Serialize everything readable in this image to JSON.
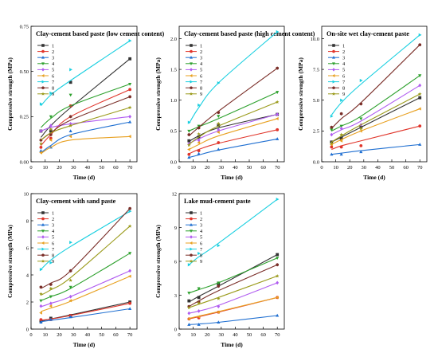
{
  "series_labels": [
    "1",
    "2",
    "3",
    "4",
    "5",
    "6",
    "7",
    "8",
    "9"
  ],
  "series_colors": [
    "#333333",
    "#e0352b",
    "#1f6fd1",
    "#2ca02c",
    "#b05cf0",
    "#e8a020",
    "#19cfe0",
    "#7a2e28",
    "#9a9a1a"
  ],
  "series_markers": [
    "square",
    "circle",
    "triangle-up",
    "triangle-down",
    "diamond",
    "triangle-left",
    "triangle-right",
    "hexagon",
    "star"
  ],
  "chart_data": [
    {
      "type": "scatter",
      "title": "Clay-cement based paste (low cement content)",
      "xlabel": "Time (d)",
      "ylabel": "Compressive strength (MPa)",
      "xlim": [
        0,
        75
      ],
      "ylim": [
        0.0,
        0.75
      ],
      "xticks": [
        0,
        10,
        20,
        30,
        40,
        50,
        60,
        70
      ],
      "yticks": [
        0.0,
        0.25,
        0.5,
        0.75
      ],
      "ytick_labels": [
        "0.00",
        "0.25",
        "0.50",
        "0.75"
      ],
      "x": [
        7,
        14,
        28,
        70
      ],
      "series": [
        {
          "name": "1",
          "values": [
            0.17,
            0.17,
            0.44,
            0.57
          ],
          "fit": [
            0.135,
            0.2,
            0.3,
            0.57
          ]
        },
        {
          "name": "2",
          "values": [
            0.08,
            0.13,
            0.31,
            0.4
          ],
          "fit": [
            0.09,
            0.15,
            0.25,
            0.4
          ]
        },
        {
          "name": "3",
          "values": [
            0.06,
            0.08,
            0.17,
            0.22
          ],
          "fit": [
            0.05,
            0.09,
            0.15,
            0.22
          ]
        },
        {
          "name": "4",
          "values": [
            0.17,
            0.25,
            0.37,
            0.43
          ],
          "fit": [
            0.19,
            0.24,
            0.31,
            0.43
          ]
        },
        {
          "name": "5",
          "values": [
            0.17,
            0.2,
            0.21,
            0.25
          ],
          "fit": [
            0.17,
            0.19,
            0.21,
            0.25
          ]
        },
        {
          "name": "6",
          "values": [
            0.05,
            0.12,
            0.14,
            0.14
          ],
          "fit": [
            0.045,
            0.08,
            0.12,
            0.14
          ]
        },
        {
          "name": "7",
          "values": [
            0.32,
            0.38,
            0.51,
            0.67
          ],
          "fit": [
            0.31,
            0.37,
            0.45,
            0.67
          ]
        },
        {
          "name": "8",
          "values": [
            0.12,
            0.15,
            0.25,
            0.36
          ],
          "fit": [
            0.12,
            0.16,
            0.23,
            0.36
          ]
        },
        {
          "name": "9",
          "values": [
            0.1,
            0.18,
            0.2,
            0.3
          ],
          "fit": [
            0.12,
            0.16,
            0.2,
            0.3
          ]
        }
      ]
    },
    {
      "type": "scatter",
      "title": "Clay-cement based paste (high cement content)",
      "xlabel": "Time (d)",
      "ylabel": "Compressive strength (MPa)",
      "xlim": [
        0,
        75
      ],
      "ylim": [
        0.0,
        2.2
      ],
      "xticks": [
        0,
        10,
        20,
        30,
        40,
        50,
        60,
        70
      ],
      "yticks": [
        0.0,
        0.5,
        1.0,
        1.5,
        2.0
      ],
      "ytick_labels": [
        "0.0",
        "0.5",
        "1.0",
        "1.5",
        "2.0"
      ],
      "x": [
        7,
        14,
        28,
        70
      ],
      "series": [
        {
          "name": "1",
          "values": [
            0.34,
            0.4,
            0.59,
            0.77
          ],
          "fit": [
            0.33,
            0.42,
            0.55,
            0.77
          ]
        },
        {
          "name": "2",
          "values": [
            0.12,
            0.18,
            0.31,
            0.52
          ],
          "fit": [
            0.13,
            0.2,
            0.3,
            0.52
          ]
        },
        {
          "name": "3",
          "values": [
            0.07,
            0.13,
            0.2,
            0.37
          ],
          "fit": [
            0.07,
            0.11,
            0.19,
            0.37
          ]
        },
        {
          "name": "4",
          "values": [
            0.5,
            0.58,
            0.74,
            1.13
          ],
          "fit": [
            0.5,
            0.57,
            0.7,
            1.13
          ]
        },
        {
          "name": "5",
          "values": [
            0.29,
            0.35,
            0.52,
            0.77
          ],
          "fit": [
            0.3,
            0.37,
            0.5,
            0.77
          ]
        },
        {
          "name": "6",
          "values": [
            0.2,
            0.31,
            0.48,
            0.7
          ],
          "fit": [
            0.2,
            0.28,
            0.42,
            0.7
          ]
        },
        {
          "name": "7",
          "values": [
            0.64,
            0.92,
            1.28,
            2.11
          ],
          "fit": [
            0.62,
            0.88,
            1.28,
            2.11
          ]
        },
        {
          "name": "8",
          "values": [
            0.44,
            0.55,
            0.8,
            1.52
          ],
          "fit": [
            0.42,
            0.56,
            0.82,
            1.52
          ]
        },
        {
          "name": "9",
          "values": [
            0.27,
            0.45,
            0.62,
            0.97
          ],
          "fit": [
            0.28,
            0.4,
            0.58,
            0.97
          ]
        }
      ]
    },
    {
      "type": "scatter",
      "title": "On-site wet clay-cement paste",
      "xlabel": "Time (d)",
      "ylabel": "Compressive strength (MPa)",
      "xlim": [
        0,
        75
      ],
      "ylim": [
        0.0,
        11.0
      ],
      "xticks": [
        0,
        10,
        20,
        30,
        40,
        50,
        60,
        70
      ],
      "yticks": [
        0.0,
        2.5,
        5.0,
        7.5,
        10.0
      ],
      "ytick_labels": [
        "0.0",
        "2.5",
        "5.0",
        "7.5",
        "10.0"
      ],
      "x": [
        7,
        14,
        28,
        70
      ],
      "series": [
        {
          "name": "1",
          "values": [
            1.6,
            1.9,
            2.8,
            5.2
          ],
          "fit": [
            1.6,
            2.0,
            2.8,
            5.2
          ]
        },
        {
          "name": "2",
          "values": [
            1.2,
            1.2,
            1.3,
            2.9
          ],
          "fit": [
            1.0,
            1.3,
            1.7,
            2.9
          ]
        },
        {
          "name": "3",
          "values": [
            0.6,
            0.6,
            0.8,
            1.4
          ],
          "fit": [
            0.6,
            0.7,
            0.9,
            1.4
          ]
        },
        {
          "name": "4",
          "values": [
            2.6,
            2.9,
            3.5,
            7.0
          ],
          "fit": [
            2.5,
            2.9,
            3.7,
            7.0
          ]
        },
        {
          "name": "5",
          "values": [
            2.2,
            2.7,
            3.0,
            6.2
          ],
          "fit": [
            2.2,
            2.6,
            3.3,
            6.2
          ]
        },
        {
          "name": "6",
          "values": [
            1.4,
            1.7,
            2.5,
            4.3
          ],
          "fit": [
            1.4,
            1.8,
            2.5,
            4.3
          ]
        },
        {
          "name": "7",
          "values": [
            3.7,
            5.0,
            6.6,
            10.3
          ],
          "fit": [
            3.8,
            4.8,
            6.3,
            10.3
          ]
        },
        {
          "name": "8",
          "values": [
            2.8,
            3.9,
            4.7,
            9.5
          ],
          "fit": [
            2.7,
            3.5,
            4.8,
            9.5
          ]
        },
        {
          "name": "9",
          "values": [
            1.5,
            2.2,
            2.7,
            5.5
          ],
          "fit": [
            1.6,
            2.1,
            3.0,
            5.5
          ]
        }
      ]
    },
    {
      "type": "scatter",
      "title": "Clay-cement with sand paste",
      "xlabel": "Time (d)",
      "ylabel": "Compressive strength (MPa)",
      "xlim": [
        0,
        75
      ],
      "ylim": [
        0,
        10
      ],
      "xticks": [
        0,
        10,
        20,
        30,
        40,
        50,
        60,
        70
      ],
      "yticks": [
        0,
        2,
        4,
        6,
        8,
        10
      ],
      "ytick_labels": [
        "0",
        "2",
        "4",
        "6",
        "8",
        "10"
      ],
      "x": [
        7,
        14,
        28,
        70
      ],
      "series": [
        {
          "name": "1",
          "values": [
            0.6,
            0.8,
            1.0,
            2.0
          ],
          "fit": [
            0.6,
            0.75,
            1.05,
            2.0
          ]
        },
        {
          "name": "2",
          "values": [
            0.7,
            0.7,
            1.0,
            1.9
          ],
          "fit": [
            0.65,
            0.75,
            1.0,
            1.9
          ]
        },
        {
          "name": "3",
          "values": [
            0.5,
            0.7,
            0.9,
            1.5
          ],
          "fit": [
            0.55,
            0.65,
            0.85,
            1.5
          ]
        },
        {
          "name": "4",
          "values": [
            2.1,
            2.4,
            3.1,
            5.6
          ],
          "fit": [
            2.1,
            2.4,
            3.0,
            5.6
          ]
        },
        {
          "name": "5",
          "values": [
            1.7,
            1.9,
            2.4,
            4.3
          ],
          "fit": [
            1.65,
            1.9,
            2.4,
            4.3
          ]
        },
        {
          "name": "6",
          "values": [
            1.2,
            1.7,
            2.1,
            3.9
          ],
          "fit": [
            1.3,
            1.55,
            2.05,
            3.9
          ]
        },
        {
          "name": "7",
          "values": [
            4.4,
            4.9,
            6.4,
            8.7
          ],
          "fit": [
            4.4,
            5.1,
            6.1,
            8.7
          ]
        },
        {
          "name": "8",
          "values": [
            3.1,
            3.3,
            4.3,
            8.9
          ],
          "fit": [
            3.0,
            3.4,
            4.3,
            8.9
          ]
        },
        {
          "name": "9",
          "values": [
            2.6,
            3.0,
            3.6,
            7.6
          ],
          "fit": [
            2.5,
            2.9,
            3.8,
            7.6
          ]
        }
      ]
    },
    {
      "type": "scatter",
      "title": "Lake mud-cement paste",
      "xlabel": "Time (d)",
      "ylabel": "Compressive strength (MPa)",
      "xlim": [
        0,
        75
      ],
      "ylim": [
        0,
        12
      ],
      "xticks": [
        0,
        10,
        20,
        30,
        40,
        50,
        60,
        70
      ],
      "yticks": [
        0,
        3,
        6,
        9,
        12
      ],
      "ytick_labels": [
        "0",
        "3",
        "6",
        "9",
        "12"
      ],
      "x": [
        7,
        14,
        28,
        70
      ],
      "series": [
        {
          "name": "1",
          "values": [
            2.5,
            2.8,
            4.0,
            6.6
          ],
          "fit": [
            2.4,
            2.9,
            3.8,
            6.6
          ]
        },
        {
          "name": "2",
          "values": [
            0.9,
            1.0,
            1.5,
            2.8
          ],
          "fit": [
            0.9,
            1.1,
            1.5,
            2.8
          ]
        },
        {
          "name": "3",
          "values": [
            0.4,
            0.4,
            0.6,
            1.2
          ],
          "fit": [
            0.4,
            0.45,
            0.6,
            1.2
          ]
        },
        {
          "name": "4",
          "values": [
            3.2,
            3.6,
            4.1,
            6.3
          ],
          "fit": [
            3.2,
            3.5,
            4.1,
            6.3
          ]
        },
        {
          "name": "5",
          "values": [
            1.4,
            1.6,
            2.0,
            4.1
          ],
          "fit": [
            1.4,
            1.6,
            2.1,
            4.1
          ]
        },
        {
          "name": "6",
          "values": [
            0.9,
            1.1,
            1.5,
            2.8
          ],
          "fit": [
            0.95,
            1.15,
            1.55,
            2.8
          ]
        },
        {
          "name": "7",
          "values": [
            5.7,
            6.7,
            7.4,
            11.5
          ],
          "fit": [
            5.7,
            6.4,
            7.6,
            11.5
          ]
        },
        {
          "name": "8",
          "values": [
            2.0,
            2.4,
            3.8,
            5.7
          ],
          "fit": [
            2.0,
            2.5,
            3.4,
            5.7
          ]
        },
        {
          "name": "9",
          "values": [
            1.9,
            2.3,
            2.7,
            4.7
          ],
          "fit": [
            1.9,
            2.2,
            2.8,
            4.7
          ]
        }
      ]
    }
  ]
}
